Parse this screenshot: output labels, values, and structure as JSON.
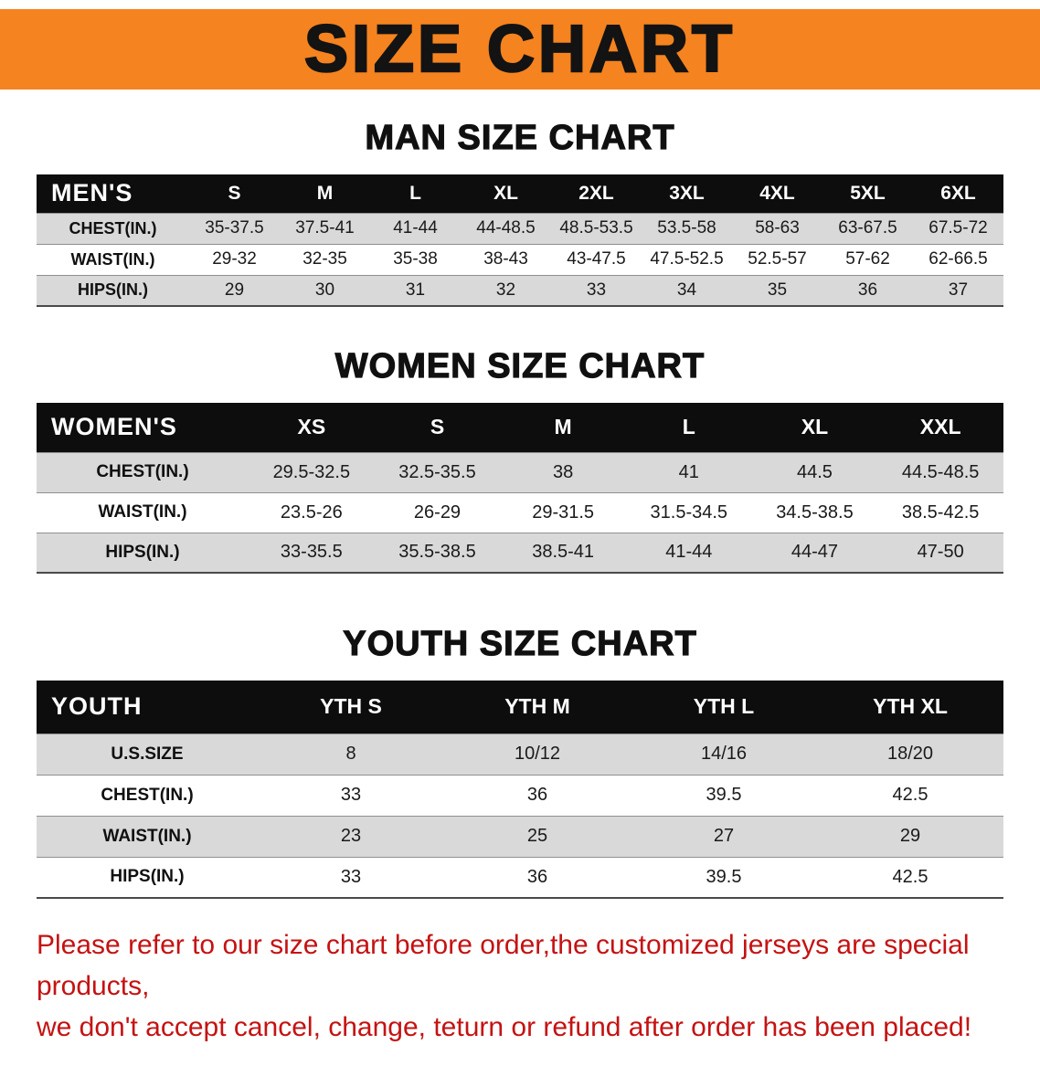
{
  "banner": {
    "title": "SIZE CHART"
  },
  "colors": {
    "banner_bg": "#f5831f",
    "table_header_bg": "#0d0d0d",
    "row_alt_gray": "#d9d9d9",
    "notice_red": "#c51212"
  },
  "tables": [
    {
      "heading": "MAN SIZE CHART",
      "label": "MEN'S",
      "sizes": [
        "S",
        "M",
        "L",
        "XL",
        "2XL",
        "3XL",
        "4XL",
        "5XL",
        "6XL"
      ],
      "rows": [
        {
          "label": "CHEST(IN.)",
          "values": [
            "35-37.5",
            "37.5-41",
            "41-44",
            "44-48.5",
            "48.5-53.5",
            "53.5-58",
            "58-63",
            "63-67.5",
            "67.5-72"
          ]
        },
        {
          "label": "WAIST(IN.)",
          "values": [
            "29-32",
            "32-35",
            "35-38",
            "38-43",
            "43-47.5",
            "47.5-52.5",
            "52.5-57",
            "57-62",
            "62-66.5"
          ]
        },
        {
          "label": "HIPS(IN.)",
          "values": [
            "29",
            "30",
            "31",
            "32",
            "33",
            "34",
            "35",
            "36",
            "37"
          ]
        }
      ]
    },
    {
      "heading": "WOMEN SIZE CHART",
      "label": "WOMEN'S",
      "sizes": [
        "XS",
        "S",
        "M",
        "L",
        "XL",
        "XXL"
      ],
      "rows": [
        {
          "label": "CHEST(IN.)",
          "values": [
            "29.5-32.5",
            "32.5-35.5",
            "38",
            "41",
            "44.5",
            "44.5-48.5"
          ]
        },
        {
          "label": "WAIST(IN.)",
          "values": [
            "23.5-26",
            "26-29",
            "29-31.5",
            "31.5-34.5",
            "34.5-38.5",
            "38.5-42.5"
          ]
        },
        {
          "label": "HIPS(IN.)",
          "values": [
            "33-35.5",
            "35.5-38.5",
            "38.5-41",
            "41-44",
            "44-47",
            "47-50"
          ]
        }
      ]
    },
    {
      "heading": "YOUTH SIZE CHART",
      "label": "YOUTH",
      "sizes": [
        "YTH S",
        "YTH M",
        "YTH L",
        "YTH XL"
      ],
      "rows": [
        {
          "label": "U.S.SIZE",
          "values": [
            "8",
            "10/12",
            "14/16",
            "18/20"
          ]
        },
        {
          "label": "CHEST(IN.)",
          "values": [
            "33",
            "36",
            "39.5",
            "42.5"
          ]
        },
        {
          "label": "WAIST(IN.)",
          "values": [
            "23",
            "25",
            "27",
            "29"
          ]
        },
        {
          "label": "HIPS(IN.)",
          "values": [
            "33",
            "36",
            "39.5",
            "42.5"
          ]
        }
      ]
    }
  ],
  "footer": {
    "line1": "Please refer to our size chart before order,the customized jerseys are special products,",
    "line2": "we don't accept cancel, change, teturn or refund after order has been placed!"
  }
}
